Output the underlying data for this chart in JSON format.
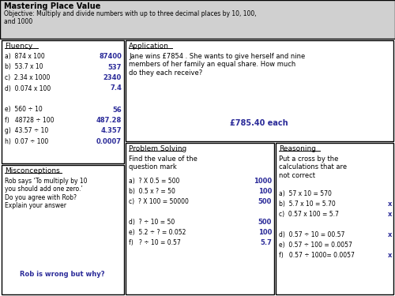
{
  "title": "Mastering Place Value",
  "objective": "Objective: Multiply and divide numbers with up to three decimal places by 10, 100,\nand 1000",
  "header_bg": "#d0d0d0",
  "fluency_title": "Fluency",
  "fluency_questions": [
    "a)  874 x 100",
    "b)  53.7 x 10",
    "c)  2.34 x 1000",
    "d)  0.074 x 100",
    "",
    "e)  560 ÷ 10",
    "f)   48728 ÷ 100",
    "g)  43.57 ÷ 10",
    "h)  0.07 ÷ 100"
  ],
  "fluency_answers": [
    "87400",
    "537",
    "2340",
    "7.4",
    "",
    "56",
    "487.28",
    "4.357",
    "0.0007"
  ],
  "application_title": "Application",
  "application_text": "Jane wins £7854 . She wants to give herself and nine\nmembers of her family an equal share. How much\ndo they each receive?",
  "application_answer": "£785.40 each",
  "misconceptions_title": "Misconceptions",
  "misconceptions_text": "Rob says ‘To multiply by 10\nyou should add one zero.’\nDo you agree with Rob?\nExplain your answer",
  "misconceptions_answer": "Rob is wrong but why?",
  "problem_title": "Problem Solving",
  "problem_intro": "Find the value of the\nquestion mark",
  "problem_questions": [
    "a)  ? X 0.5 = 500",
    "b)  0.5 x ? = 50",
    "c)  ? X 100 = 50000",
    "",
    "d)  ? ÷ 10 = 50",
    "e)  5.2 ÷ ? = 0.052",
    "f)   ? ÷ 10 = 0.57"
  ],
  "problem_answers": [
    "1000",
    "100",
    "500",
    "",
    "500",
    "100",
    "5.7"
  ],
  "reasoning_title": "Reasoning",
  "reasoning_intro": "Put a cross by the\ncalculations that are\nnot correct",
  "reasoning_items": [
    "a)  57 x 10 = 570",
    "b)  5.7 x 10 = 5.70",
    "c)  0.57 x 100 = 5.7",
    "",
    "d)  0.57 ÷ 10 = 00.57",
    "e)  0.57 ÷ 100 = 0.0057",
    "f)   0.57 ÷ 1000= 0.0057"
  ],
  "reasoning_crosses": [
    false,
    true,
    true,
    false,
    true,
    false,
    true
  ],
  "answer_color": "#2b2b99",
  "cross_color": "#2b2b99"
}
